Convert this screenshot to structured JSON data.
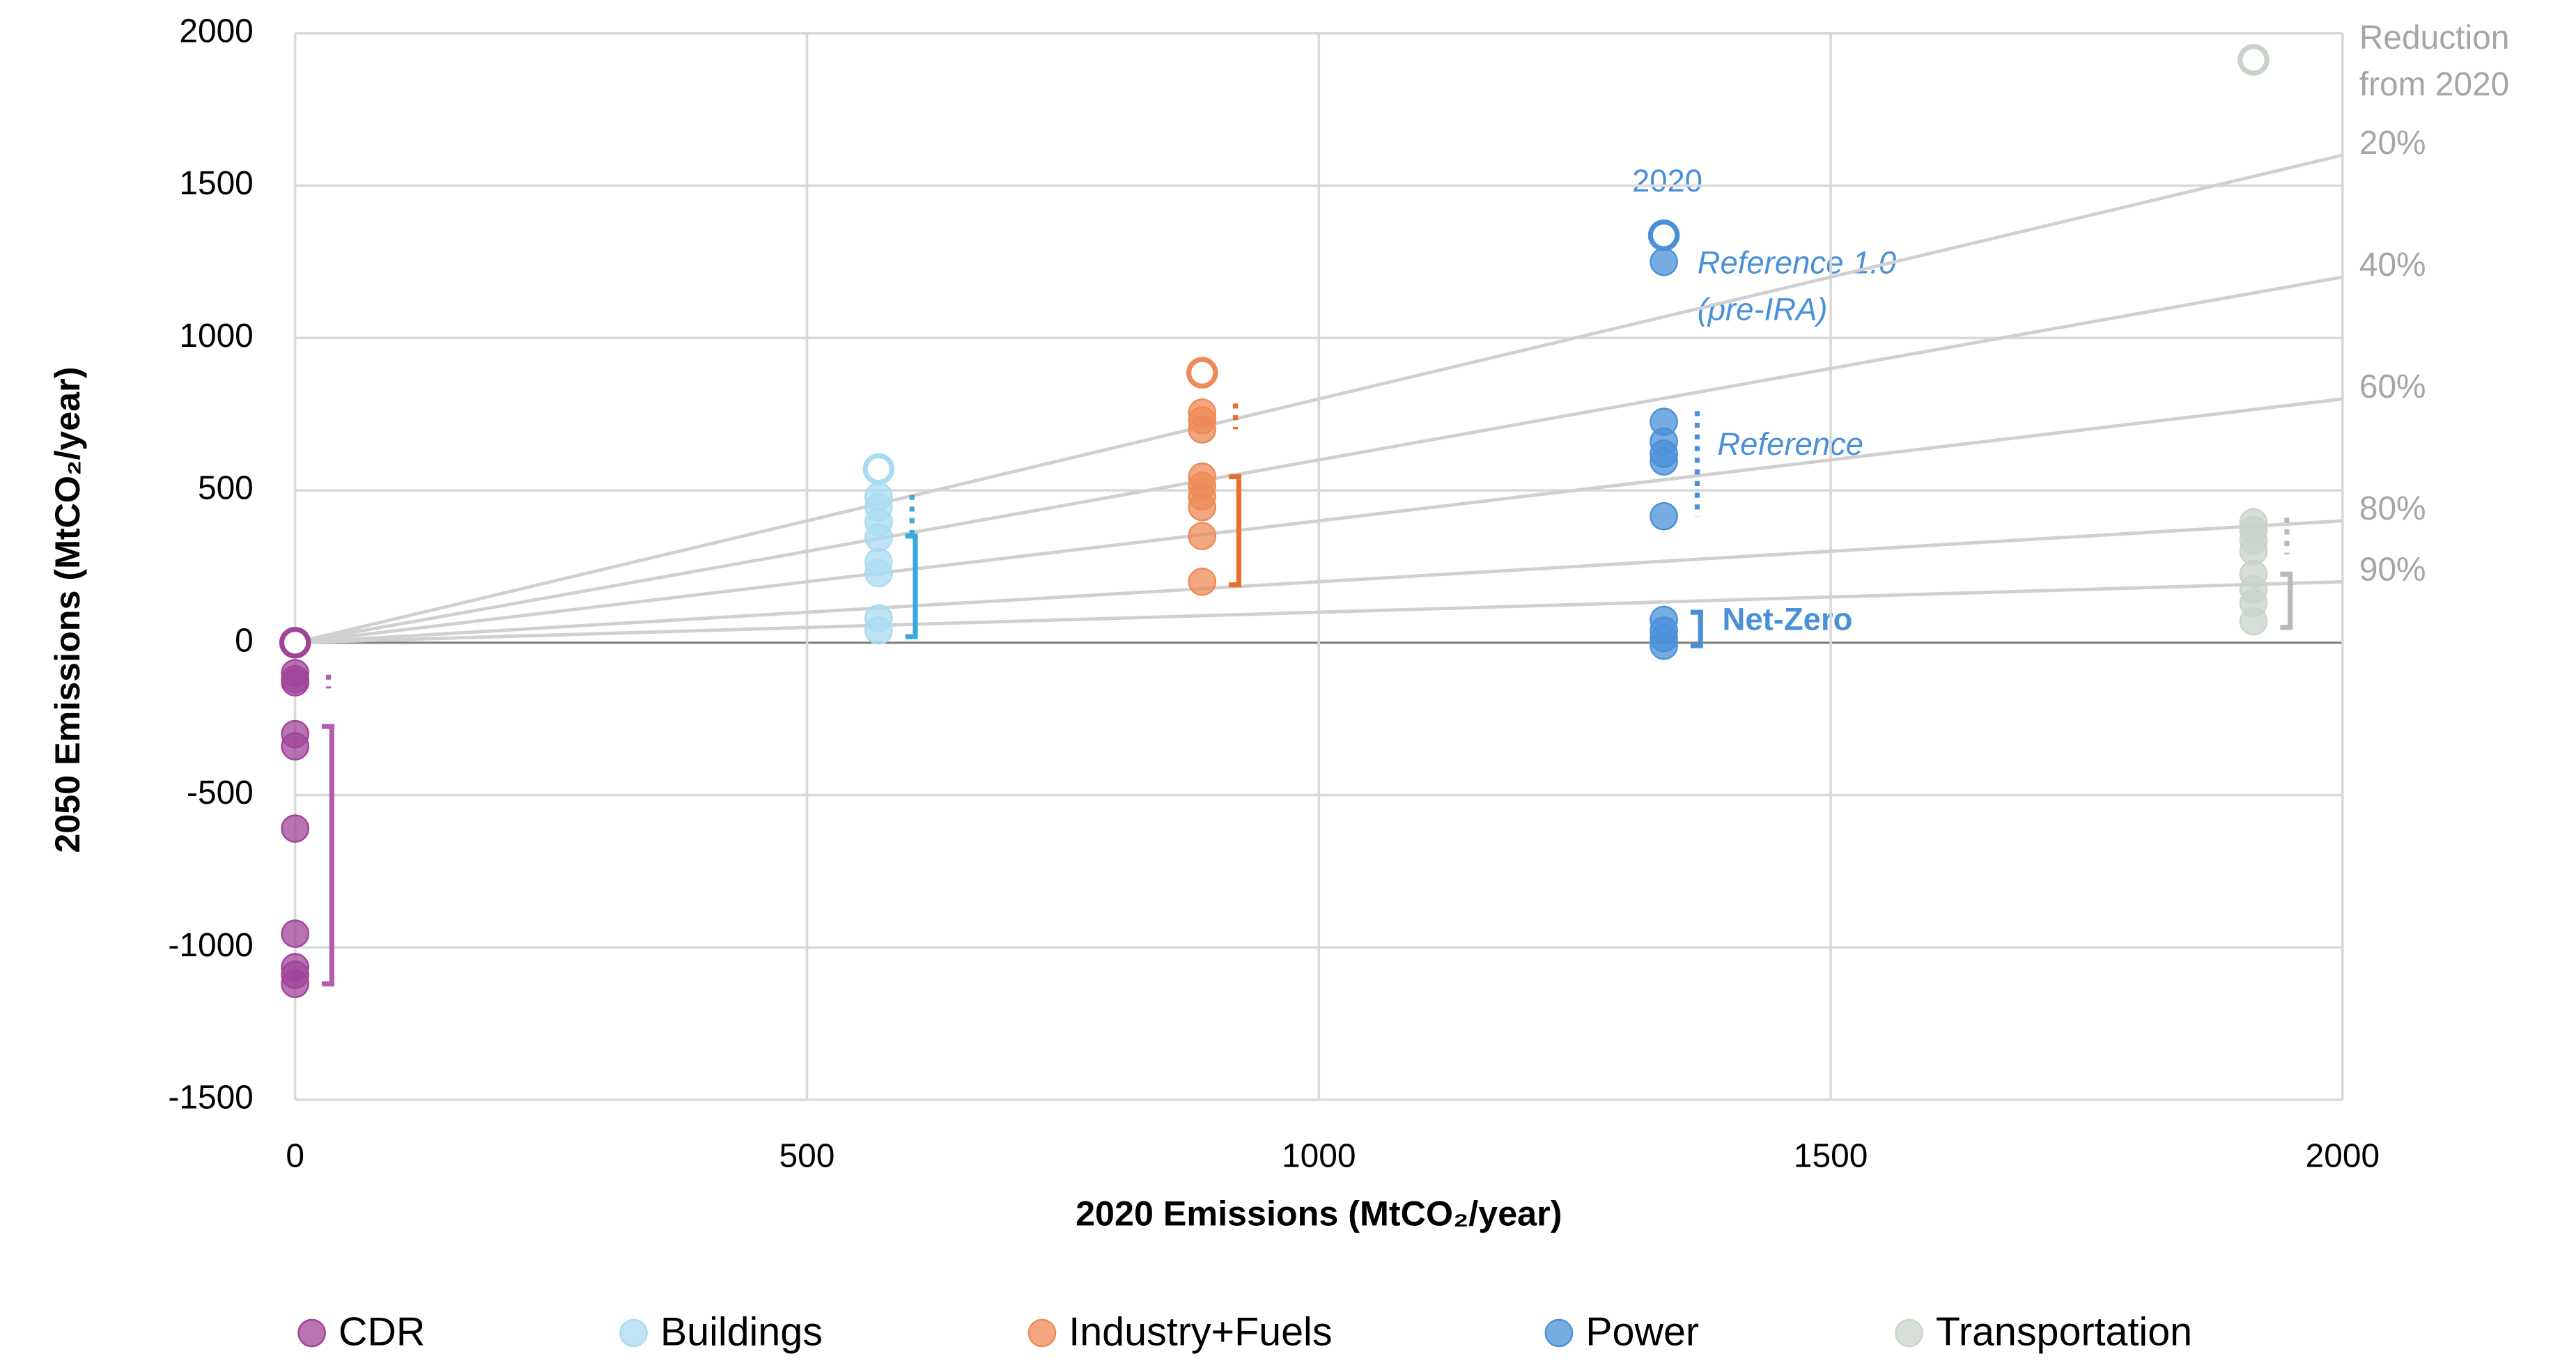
{
  "chart_data": {
    "type": "scatter",
    "xlabel": "2020 Emissions (MtCO₂/year)",
    "ylabel": "2050 Emissions (MtCO₂/year)",
    "xlim": [
      0,
      2000
    ],
    "xticks": [
      0,
      500,
      1000,
      1500,
      2000
    ],
    "ylim": [
      -1500,
      2000
    ],
    "yticks": [
      -1500,
      -1000,
      -500,
      0,
      500,
      1000,
      1500,
      2000
    ],
    "grid": true,
    "reduction_title_lines": [
      "Reduction",
      "from 2020"
    ],
    "reduction_lines": [
      {
        "value": 20,
        "label": "20%"
      },
      {
        "value": 40,
        "label": "40%"
      },
      {
        "value": 60,
        "label": "60%"
      },
      {
        "value": 80,
        "label": "80%"
      },
      {
        "value": 90,
        "label": "90%"
      }
    ],
    "annotations": [
      "2020",
      "Reference 1.0",
      "(pre-IRA)",
      "Reference",
      "Net-Zero"
    ],
    "series": [
      {
        "name": "CDR",
        "color": "#a0449a",
        "bracket_color": "#b35cb0",
        "x2020": 0,
        "values": [
          -100,
          -120,
          -130,
          -300,
          -340,
          -610,
          -955,
          -1065,
          -1090,
          -1120
        ],
        "reference_range": [
          -105,
          -150
        ],
        "net_zero_range": [
          -275,
          -1120
        ]
      },
      {
        "name": "Buildings",
        "color": "#a9dcf0",
        "bracket_color": "#3aa8dc",
        "x2020": 570,
        "values": [
          480,
          445,
          395,
          345,
          265,
          228,
          80,
          40
        ],
        "reference_range": [
          485,
          340
        ],
        "net_zero_range": [
          350,
          20
        ]
      },
      {
        "name": "Industry+Fuels",
        "color": "#ee8a55",
        "bracket_color": "#e8702a",
        "x2020": 886,
        "values": [
          755,
          730,
          700,
          545,
          515,
          480,
          445,
          350,
          200
        ],
        "reference_range": [
          785,
          700
        ],
        "net_zero_range": [
          545,
          190
        ]
      },
      {
        "name": "Power",
        "color": "#4a90d9",
        "bracket_color": "#4a90d9",
        "x2020": 1337,
        "values": [
          1250,
          725,
          660,
          620,
          595,
          415,
          75,
          40,
          15,
          -10
        ],
        "reference_range": [
          760,
          415
        ],
        "net_zero_range": [
          100,
          -10
        ]
      },
      {
        "name": "Transportation",
        "color": "#c9d3c9",
        "bracket_color": "#b8b8b8",
        "x2020": 1913,
        "values": [
          395,
          370,
          335,
          300,
          225,
          175,
          130,
          70
        ],
        "reference_range": [
          410,
          290
        ],
        "net_zero_range": [
          225,
          50
        ]
      }
    ]
  }
}
